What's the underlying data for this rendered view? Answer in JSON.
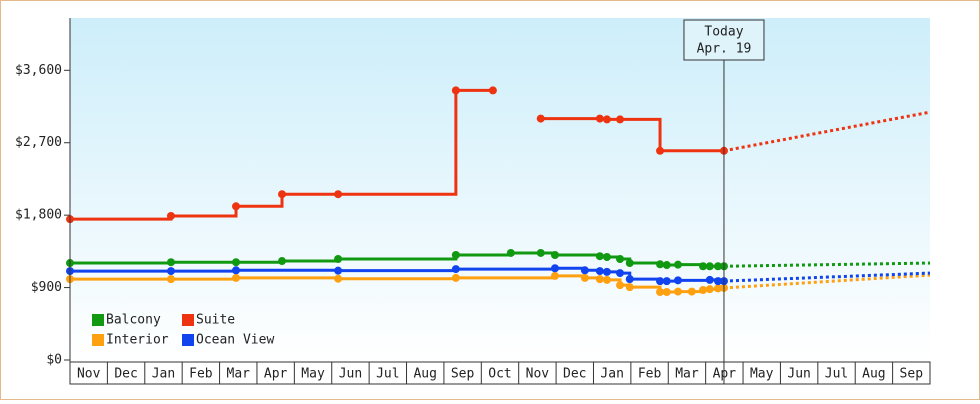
{
  "chart_data": {
    "type": "step-line",
    "xlim": [
      0,
      23
    ],
    "xticks": [
      {
        "value": 0,
        "label": "Nov"
      },
      {
        "value": 1,
        "label": "Dec"
      },
      {
        "value": 2,
        "label": "Jan"
      },
      {
        "value": 3,
        "label": "Feb"
      },
      {
        "value": 4,
        "label": "Mar"
      },
      {
        "value": 5,
        "label": "Apr"
      },
      {
        "value": 6,
        "label": "May"
      },
      {
        "value": 7,
        "label": "Jun"
      },
      {
        "value": 8,
        "label": "Jul"
      },
      {
        "value": 9,
        "label": "Aug"
      },
      {
        "value": 10,
        "label": "Sep"
      },
      {
        "value": 11,
        "label": "Oct"
      },
      {
        "value": 12,
        "label": "Nov"
      },
      {
        "value": 13,
        "label": "Dec"
      },
      {
        "value": 14,
        "label": "Jan"
      },
      {
        "value": 15,
        "label": "Feb"
      },
      {
        "value": 16,
        "label": "Mar"
      },
      {
        "value": 17,
        "label": "Apr"
      },
      {
        "value": 18,
        "label": "May"
      },
      {
        "value": 19,
        "label": "Jun"
      },
      {
        "value": 20,
        "label": "Jul"
      },
      {
        "value": 21,
        "label": "Aug"
      },
      {
        "value": 22,
        "label": "Sep"
      }
    ],
    "ylim": [
      0,
      4250
    ],
    "yticks": [
      {
        "value": 0,
        "label": "$0"
      },
      {
        "value": 900,
        "label": "$900"
      },
      {
        "value": 1800,
        "label": "$1,800"
      },
      {
        "value": 2700,
        "label": "$2,700"
      },
      {
        "value": 3600,
        "label": "$3,600"
      }
    ],
    "legend": "lower left",
    "today": {
      "x": 17.49,
      "label": "Today",
      "date": "Apr. 19"
    },
    "series": [
      {
        "name": "Balcony",
        "color": "#119911",
        "x": [
          0,
          2.7,
          4.44,
          5.67,
          7.17,
          10.32,
          11.79,
          12.59,
          12.97,
          14.17,
          14.36,
          14.71,
          14.97,
          15.78,
          15.96,
          16.26,
          16.93,
          17.11,
          17.33,
          17.49
        ],
        "values": [
          1205,
          1215,
          1215,
          1230,
          1255,
          1305,
          1330,
          1330,
          1305,
          1290,
          1280,
          1255,
          1205,
          1190,
          1180,
          1185,
          1165,
          1165,
          1165,
          1165
        ],
        "forecast": {
          "x": [
            23
          ],
          "values": [
            1205
          ]
        }
      },
      {
        "name": "Suite",
        "color": "#ee3311",
        "x": [
          0,
          2.7,
          4.44,
          5.67,
          7.17,
          10.32,
          11.31,
          11.9,
          12.59,
          14.17,
          14.36,
          14.71,
          15.78,
          17.49
        ],
        "values": [
          1750,
          1790,
          1910,
          2060,
          2060,
          3350,
          3350,
          null,
          3000,
          3000,
          2990,
          2990,
          2600,
          2600
        ],
        "forecast": {
          "x": [
            23
          ],
          "values": [
            3080
          ]
        }
      },
      {
        "name": "Interior",
        "color": "#ffa010",
        "x": [
          0,
          2.7,
          4.44,
          7.17,
          10.32,
          12.97,
          13.77,
          14.17,
          14.36,
          14.71,
          14.97,
          15.78,
          15.96,
          16.26,
          16.63,
          16.93,
          17.11,
          17.33,
          17.49
        ],
        "values": [
          1005,
          1005,
          1020,
          1010,
          1020,
          1045,
          1020,
          1005,
          995,
          930,
          905,
          845,
          845,
          850,
          850,
          870,
          880,
          890,
          895
        ],
        "forecast": {
          "x": [
            23
          ],
          "values": [
            1055
          ]
        }
      },
      {
        "name": "Ocean View",
        "color": "#1144ee",
        "x": [
          0,
          2.7,
          4.44,
          7.17,
          10.32,
          12.97,
          13.77,
          14.17,
          14.36,
          14.71,
          14.97,
          15.78,
          15.96,
          16.26,
          17.11,
          17.33,
          17.49
        ],
        "values": [
          1105,
          1105,
          1115,
          1110,
          1130,
          1140,
          1115,
          1105,
          1095,
          1080,
          1005,
          980,
          980,
          990,
          995,
          980,
          980
        ],
        "forecast": {
          "x": [
            23
          ],
          "values": [
            1080
          ]
        }
      }
    ]
  }
}
